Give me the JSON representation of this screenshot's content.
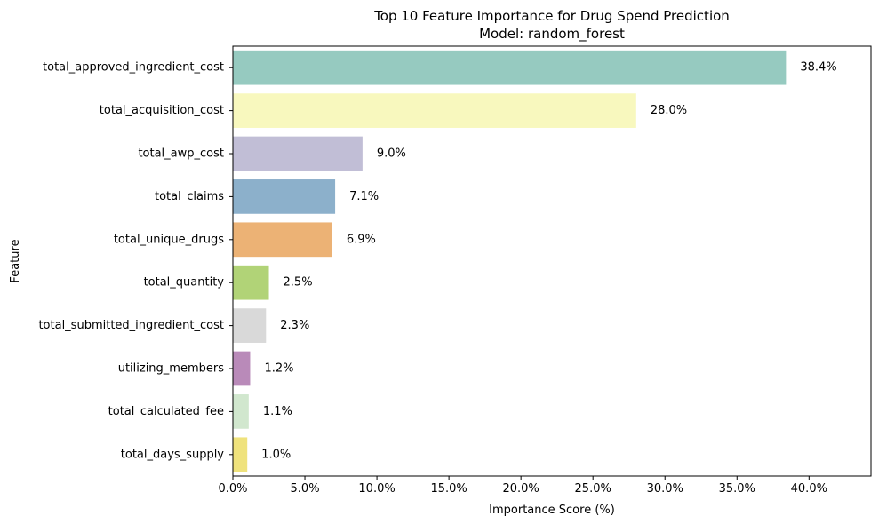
{
  "chart_data": {
    "type": "bar",
    "orientation": "horizontal",
    "title": "Top 10 Feature Importance for Drug Spend Prediction",
    "subtitle": "Model: random_forest",
    "xlabel": "Importance Score (%)",
    "ylabel": "Feature",
    "xlim": [
      0,
      44.3
    ],
    "xticks": [
      "0.0%",
      "5.0%",
      "10.0%",
      "15.0%",
      "20.0%",
      "25.0%",
      "30.0%",
      "35.0%",
      "40.0%"
    ],
    "xtick_values": [
      0,
      5,
      10,
      15,
      20,
      25,
      30,
      35,
      40
    ],
    "grid": false,
    "legend": "none",
    "categories": [
      "total_approved_ingredient_cost",
      "total_acquisition_cost",
      "total_awp_cost",
      "total_claims",
      "total_unique_drugs",
      "total_quantity",
      "total_submitted_ingredient_cost",
      "utilizing_members",
      "total_calculated_fee",
      "total_days_supply"
    ],
    "values": [
      38.4,
      28.0,
      9.0,
      7.1,
      6.9,
      2.5,
      2.3,
      1.2,
      1.1,
      1.0
    ],
    "labels": [
      "38.4%",
      "28.0%",
      "9.0%",
      "7.1%",
      "6.9%",
      "2.5%",
      "2.3%",
      "1.2%",
      "1.1%",
      "1.0%"
    ],
    "colors": [
      "#96cac0",
      "#f8f8be",
      "#c1bed6",
      "#8cb0cb",
      "#ecb275",
      "#b1d377",
      "#d9d9d9",
      "#b98ab9",
      "#d1e7ce",
      "#efe27c"
    ]
  }
}
